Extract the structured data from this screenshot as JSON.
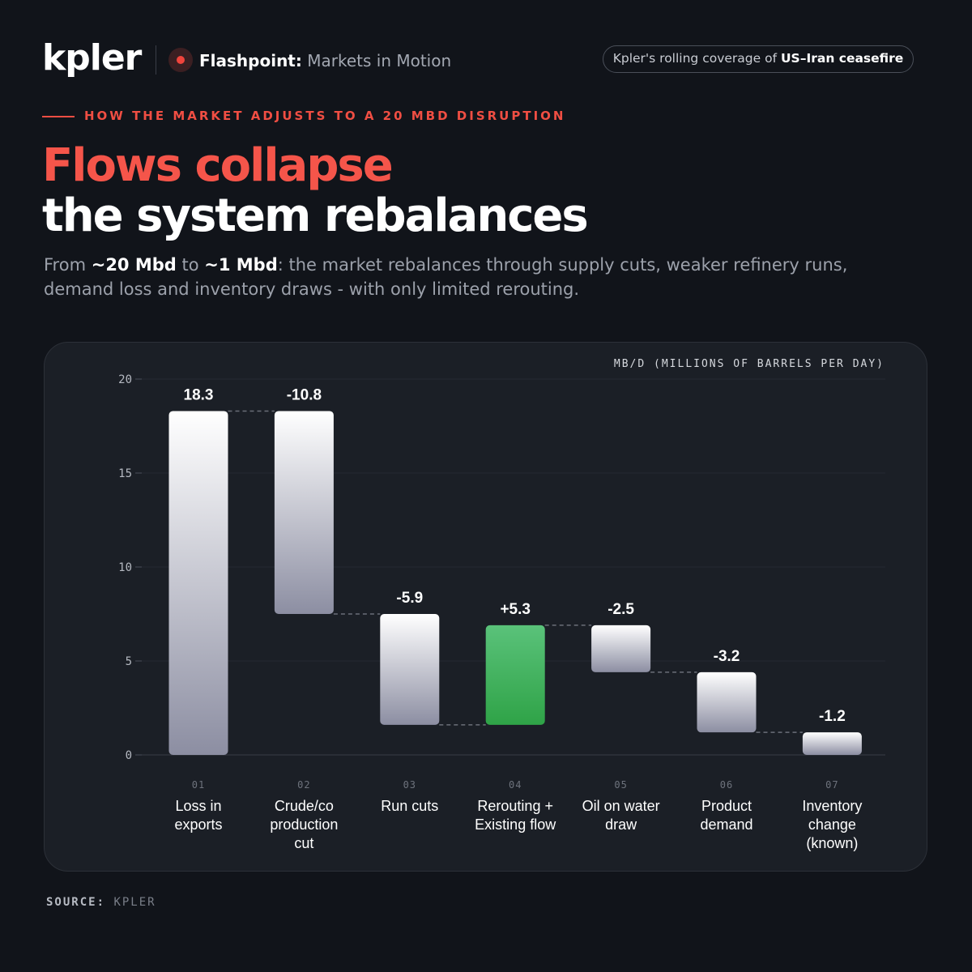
{
  "header": {
    "logo": "kpler",
    "flash_strong": "Flashpoint:",
    "flash_rest": " Markets in Motion",
    "coverage_prefix": "Kpler's rolling coverage of ",
    "coverage_strong": "US–Iran ceasefire"
  },
  "kicker": "HOW THE MARKET ADJUSTS TO A 20 MBD DISRUPTION",
  "title_line1": "Flows collapse",
  "title_line2": "the system rebalances",
  "subtitle": {
    "p1": "From ",
    "b1": "~20 Mbd",
    "p2": " to ",
    "b2": "~1 Mbd",
    "p3": ": the market rebalances through supply cuts, weaker refinery runs, demand loss and inventory draws - with only limited rerouting."
  },
  "source_label": "SOURCE:",
  "source_value": "KPLER",
  "colors": {
    "accent": "#f5554a",
    "bar_top": "#ffffff",
    "bar_bottom": "#8c8ea2",
    "positive_top": "#5ac27a",
    "positive_bottom": "#2fa347",
    "background": "#11141a",
    "card": "#1b1f26"
  },
  "chart_data": {
    "type": "waterfall",
    "ylabel": "MB/D (MILLIONS OF BARRELS PER DAY)",
    "ylim": [
      0,
      20
    ],
    "yticks": [
      "20",
      "15",
      "10",
      "5",
      "0"
    ],
    "grid": true,
    "bars": [
      {
        "index": "01",
        "label": [
          "Loss in",
          "exports"
        ],
        "display": "18.3",
        "start": 0,
        "end": 18.3,
        "positive": false
      },
      {
        "index": "02",
        "label": [
          "Crude/co",
          "production",
          "cut"
        ],
        "display": "-10.8",
        "start": 18.3,
        "end": 7.5,
        "positive": false
      },
      {
        "index": "03",
        "label": [
          "Run cuts"
        ],
        "display": "-5.9",
        "start": 7.5,
        "end": 1.6,
        "positive": false
      },
      {
        "index": "04",
        "label": [
          "Rerouting +",
          "Existing flow"
        ],
        "display": "+5.3",
        "start": 1.6,
        "end": 6.9,
        "positive": true
      },
      {
        "index": "05",
        "label": [
          "Oil on water",
          "draw"
        ],
        "display": "-2.5",
        "start": 6.9,
        "end": 4.4,
        "positive": false
      },
      {
        "index": "06",
        "label": [
          "Product",
          "demand"
        ],
        "display": "-3.2",
        "start": 4.4,
        "end": 1.2,
        "positive": false
      },
      {
        "index": "07",
        "label": [
          "Inventory",
          "change",
          "(known)"
        ],
        "display": "-1.2",
        "start": 1.2,
        "end": 0,
        "positive": false
      }
    ]
  }
}
